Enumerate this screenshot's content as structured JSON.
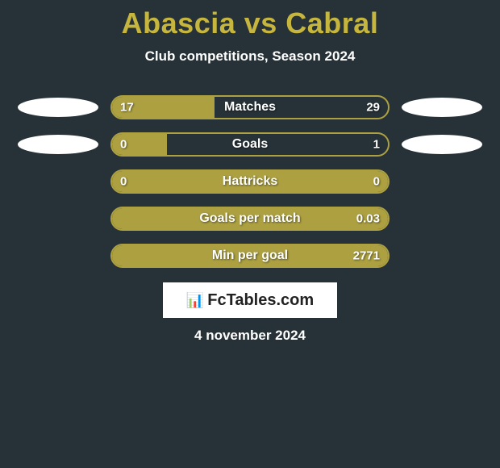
{
  "title": "Abascia vs Cabral",
  "subtitle": "Club competitions, Season 2024",
  "background_color": "#273238",
  "accent_color": "#aca041",
  "title_color": "#c7b63d",
  "text_color": "#ffffff",
  "rows": [
    {
      "label": "Matches",
      "left": "17",
      "right": "29",
      "fill_pct": 37,
      "show_left_icon": true,
      "show_right_icon": true
    },
    {
      "label": "Goals",
      "left": "0",
      "right": "1",
      "fill_pct": 20,
      "show_left_icon": true,
      "show_right_icon": true
    },
    {
      "label": "Hattricks",
      "left": "0",
      "right": "0",
      "fill_pct": 100,
      "show_left_icon": false,
      "show_right_icon": false
    },
    {
      "label": "Goals per match",
      "left": "",
      "right": "0.03",
      "fill_pct": 100,
      "show_left_icon": false,
      "show_right_icon": false
    },
    {
      "label": "Min per goal",
      "left": "",
      "right": "2771",
      "fill_pct": 100,
      "show_left_icon": false,
      "show_right_icon": false
    }
  ],
  "logo_text": "FcTables.com",
  "date_text": "4 november 2024"
}
